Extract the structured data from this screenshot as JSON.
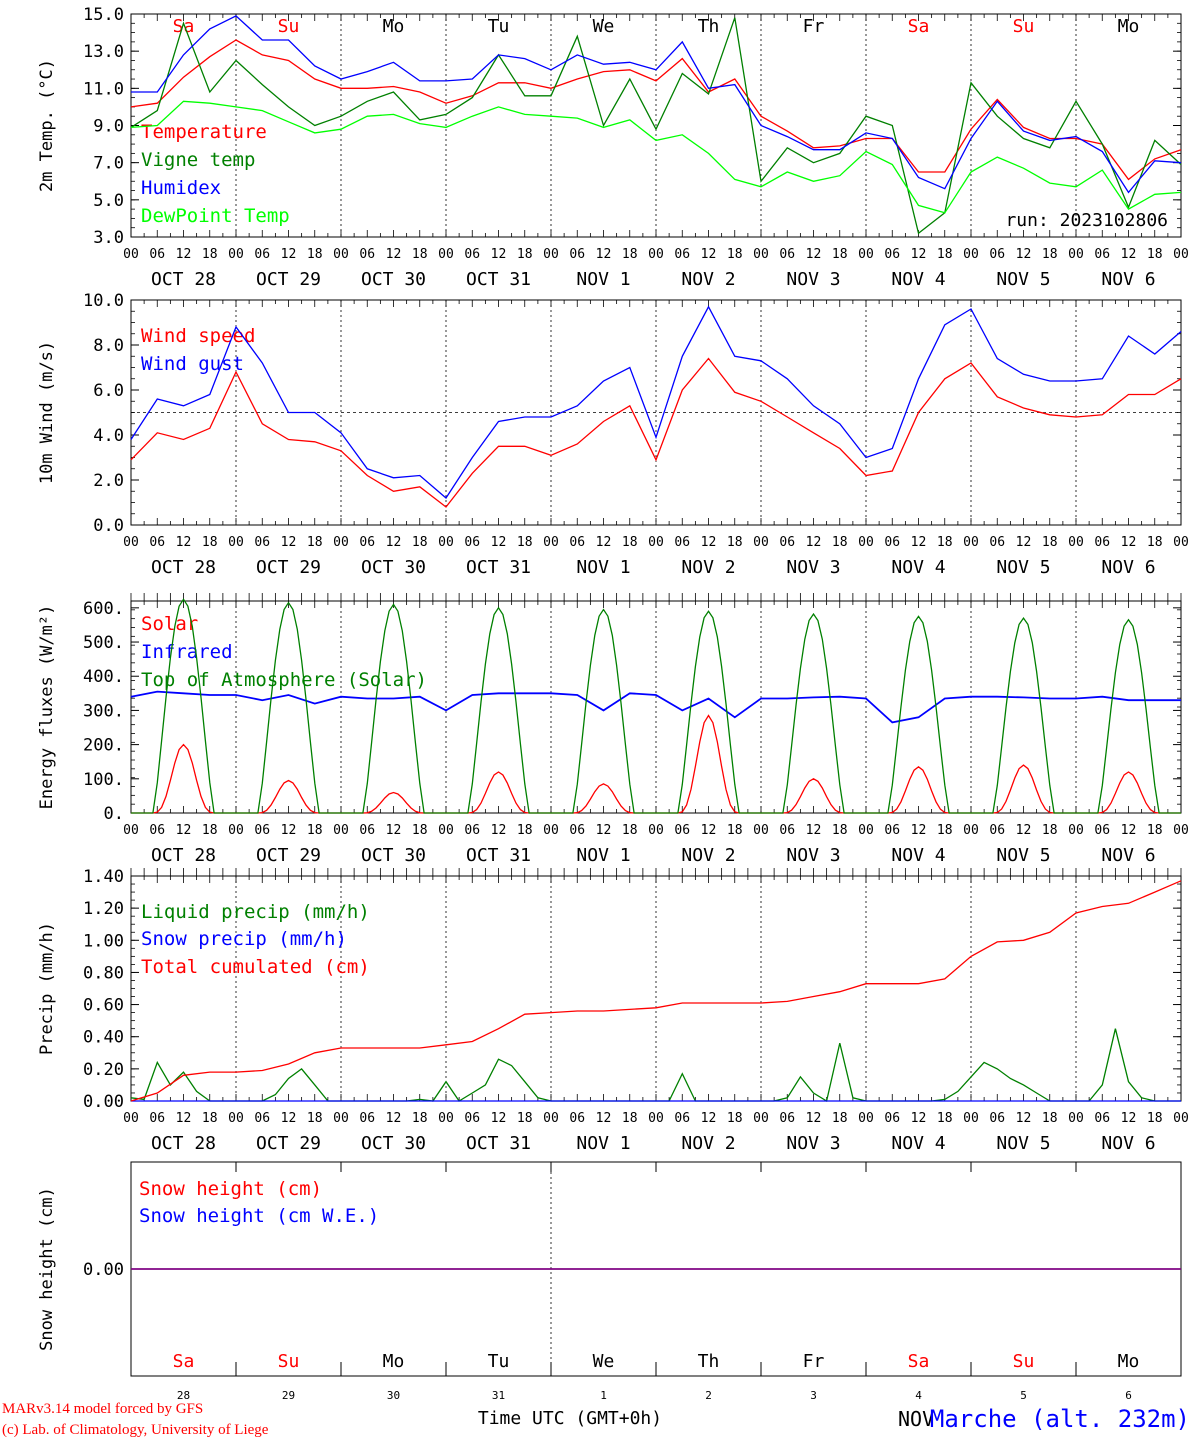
{
  "footer": {
    "model": "MARv3.14 model forced by GFS",
    "lab": "(c) Lab. of Climatology, University of Liege",
    "xlabel": "Time UTC (GMT+0h)",
    "station": "Marche (alt. 232m)",
    "overlap": "NOV"
  },
  "days": {
    "names": [
      "Sa",
      "Su",
      "Mo",
      "Tu",
      "We",
      "Th",
      "Fr",
      "Sa",
      "Su",
      "Mo"
    ],
    "weekend": [
      true,
      true,
      false,
      false,
      false,
      false,
      false,
      true,
      true,
      false
    ],
    "dates": [
      "OCT 28",
      "OCT 29",
      "OCT 30",
      "OCT 31",
      "NOV  1",
      "NOV  2",
      "NOV  3",
      "NOV  4",
      "NOV  5",
      "NOV  6"
    ],
    "numbers": [
      "28",
      "29",
      "30",
      "31",
      "1",
      "2",
      "3",
      "4",
      "5",
      "6"
    ],
    "hour_ticks": [
      "00",
      "06",
      "12",
      "18"
    ],
    "end_tick": "00"
  },
  "colors": {
    "red": "#ff0000",
    "green": "#008000",
    "blue": "#0000ff",
    "lime": "#00ff00",
    "weekend": "#ff0000",
    "purple": "#800080"
  },
  "chart_data": [
    {
      "type": "line",
      "title": "",
      "ylabel": "2m Temp. (°C)",
      "ylim": [
        3.0,
        15.0
      ],
      "yticks": [
        "3.0",
        "5.0",
        "7.0",
        "9.0",
        "11.0",
        "13.0",
        "15.0"
      ],
      "run_label": "run: 2023102806",
      "x_unit": "hours since 2023-10-28 00 UTC",
      "series": [
        {
          "name": "Temperature",
          "color": "red",
          "x": [
            0,
            6,
            12,
            18,
            24,
            30,
            36,
            42,
            48,
            54,
            60,
            66,
            72,
            78,
            84,
            90,
            96,
            102,
            108,
            114,
            120,
            126,
            132,
            138,
            144,
            150,
            156,
            162,
            168,
            174,
            180,
            186,
            192,
            198,
            204,
            210,
            216,
            222,
            228,
            234,
            240
          ],
          "y": [
            10.0,
            10.2,
            11.6,
            12.7,
            13.6,
            12.8,
            12.5,
            11.5,
            11.0,
            11.0,
            11.1,
            10.8,
            10.2,
            10.6,
            11.3,
            11.3,
            11.0,
            11.5,
            11.9,
            12.0,
            11.4,
            12.6,
            10.8,
            11.5,
            9.5,
            8.7,
            7.8,
            7.9,
            8.3,
            8.3,
            6.5,
            6.5,
            8.8,
            10.4,
            8.9,
            8.3,
            8.3,
            8.0,
            6.1,
            7.2,
            7.7
          ]
        },
        {
          "name": "Vigne temp",
          "color": "green",
          "x": [
            0,
            6,
            12,
            18,
            24,
            30,
            36,
            42,
            48,
            54,
            60,
            66,
            72,
            78,
            84,
            90,
            96,
            102,
            108,
            114,
            120,
            126,
            132,
            138,
            144,
            150,
            156,
            162,
            168,
            174,
            180,
            186,
            192,
            198,
            204,
            210,
            216,
            222,
            228,
            234,
            240
          ],
          "y": [
            8.9,
            9.8,
            14.5,
            10.8,
            12.5,
            11.2,
            10.0,
            9.0,
            9.5,
            10.3,
            10.8,
            9.3,
            9.6,
            10.5,
            12.8,
            10.6,
            10.6,
            13.8,
            9.0,
            11.5,
            8.8,
            11.8,
            10.7,
            14.8,
            6.0,
            7.8,
            7.0,
            7.5,
            9.5,
            9.0,
            3.2,
            4.3,
            11.3,
            9.5,
            8.3,
            7.8,
            10.3,
            8.0,
            4.6,
            8.2,
            6.9
          ]
        },
        {
          "name": "Humidex",
          "color": "blue",
          "x": [
            0,
            6,
            12,
            18,
            24,
            30,
            36,
            42,
            48,
            54,
            60,
            66,
            72,
            78,
            84,
            90,
            96,
            102,
            108,
            114,
            120,
            126,
            132,
            138,
            144,
            150,
            156,
            162,
            168,
            174,
            180,
            186,
            192,
            198,
            204,
            210,
            216,
            222,
            228,
            234,
            240
          ],
          "y": [
            10.8,
            10.8,
            12.8,
            14.2,
            14.9,
            13.6,
            13.6,
            12.2,
            11.5,
            11.9,
            12.4,
            11.4,
            11.4,
            11.5,
            12.8,
            12.6,
            12.0,
            12.8,
            12.3,
            12.4,
            12.0,
            13.5,
            11.0,
            11.2,
            9.0,
            8.4,
            7.7,
            7.7,
            8.6,
            8.3,
            6.2,
            5.6,
            8.3,
            10.3,
            8.7,
            8.2,
            8.4,
            7.6,
            5.4,
            7.1,
            7.0
          ]
        },
        {
          "name": "DewPoint Temp",
          "color": "lime",
          "x": [
            0,
            6,
            12,
            18,
            24,
            30,
            36,
            42,
            48,
            54,
            60,
            66,
            72,
            78,
            84,
            90,
            96,
            102,
            108,
            114,
            120,
            126,
            132,
            138,
            144,
            150,
            156,
            162,
            168,
            174,
            180,
            186,
            192,
            198,
            204,
            210,
            216,
            222,
            228,
            234,
            240
          ],
          "y": [
            8.9,
            9.0,
            10.3,
            10.2,
            10.0,
            9.8,
            9.2,
            8.6,
            8.8,
            9.5,
            9.6,
            9.1,
            8.9,
            9.5,
            10.0,
            9.6,
            9.5,
            9.4,
            8.9,
            9.3,
            8.2,
            8.5,
            7.5,
            6.1,
            5.7,
            6.5,
            6.0,
            6.3,
            7.6,
            6.9,
            4.7,
            4.3,
            6.5,
            7.3,
            6.7,
            5.9,
            5.7,
            6.6,
            4.5,
            5.3,
            5.4
          ]
        }
      ]
    },
    {
      "type": "line",
      "title": "",
      "ylabel": "10m Wind (m/s)",
      "ylim": [
        0.0,
        10.0
      ],
      "yticks": [
        "0.0",
        "2.0",
        "4.0",
        "6.0",
        "8.0",
        "10.0"
      ],
      "ref_line": 5.0,
      "x_unit": "hours since 2023-10-28 00 UTC",
      "series": [
        {
          "name": "Wind speed",
          "color": "red",
          "x": [
            0,
            6,
            12,
            18,
            24,
            30,
            36,
            42,
            48,
            54,
            60,
            66,
            72,
            78,
            84,
            90,
            96,
            102,
            108,
            114,
            120,
            126,
            132,
            138,
            144,
            150,
            156,
            162,
            168,
            174,
            180,
            186,
            192,
            198,
            204,
            210,
            216,
            222,
            228,
            234,
            240
          ],
          "y": [
            2.9,
            4.1,
            3.8,
            4.3,
            6.8,
            4.5,
            3.8,
            3.7,
            3.3,
            2.2,
            1.5,
            1.7,
            0.8,
            2.3,
            3.5,
            3.5,
            3.1,
            3.6,
            4.6,
            5.3,
            2.9,
            6.0,
            7.4,
            5.9,
            5.5,
            4.8,
            4.1,
            3.4,
            2.2,
            2.4,
            5.0,
            6.5,
            7.2,
            5.7,
            5.2,
            4.9,
            4.8,
            4.9,
            5.8,
            5.8,
            6.5
          ]
        },
        {
          "name": "Wind gust",
          "color": "blue",
          "x": [
            0,
            6,
            12,
            18,
            24,
            30,
            36,
            42,
            48,
            54,
            60,
            66,
            72,
            78,
            84,
            90,
            96,
            102,
            108,
            114,
            120,
            126,
            132,
            138,
            144,
            150,
            156,
            162,
            168,
            174,
            180,
            186,
            192,
            198,
            204,
            210,
            216,
            222,
            228,
            234,
            240
          ],
          "y": [
            3.8,
            5.6,
            5.3,
            5.8,
            8.8,
            7.2,
            5.0,
            5.0,
            4.1,
            2.5,
            2.1,
            2.2,
            1.2,
            3.0,
            4.6,
            4.8,
            4.8,
            5.3,
            6.4,
            7.0,
            3.9,
            7.5,
            9.7,
            7.5,
            7.3,
            6.5,
            5.3,
            4.5,
            3.0,
            3.4,
            6.5,
            8.9,
            9.6,
            7.4,
            6.7,
            6.4,
            6.4,
            6.5,
            8.4,
            7.6,
            8.6
          ]
        }
      ]
    },
    {
      "type": "line",
      "title": "",
      "ylabel": "Energy fluxes (W/m²)",
      "ylim": [
        0,
        620
      ],
      "yticks": [
        "0.",
        "100.",
        "200.",
        "300.",
        "400.",
        "500.",
        "600."
      ],
      "x_unit": "hours since 2023-10-28 00 UTC",
      "series": [
        {
          "name": "Solar",
          "color": "red",
          "peaks": [
            200,
            95,
            60,
            120,
            85,
            285,
            100,
            135,
            140,
            120
          ]
        },
        {
          "name": "Infrared",
          "color": "blue",
          "x": [
            0,
            6,
            12,
            18,
            24,
            30,
            36,
            42,
            48,
            54,
            60,
            66,
            72,
            78,
            84,
            90,
            96,
            102,
            108,
            114,
            120,
            126,
            132,
            138,
            144,
            150,
            156,
            162,
            168,
            174,
            180,
            186,
            192,
            198,
            204,
            210,
            216,
            222,
            228,
            234,
            240
          ],
          "y": [
            340,
            355,
            350,
            345,
            345,
            330,
            345,
            320,
            340,
            335,
            335,
            340,
            300,
            345,
            350,
            350,
            350,
            345,
            300,
            350,
            345,
            300,
            335,
            280,
            335,
            335,
            338,
            340,
            335,
            265,
            280,
            335,
            340,
            340,
            338,
            335,
            335,
            340,
            330,
            330,
            330
          ]
        },
        {
          "name": "Top of Atmosphere (Solar)",
          "color": "green",
          "peaks": [
            625,
            615,
            610,
            600,
            595,
            590,
            582,
            575,
            570,
            565
          ]
        }
      ]
    },
    {
      "type": "line",
      "title": "",
      "ylabel": "Precip (mm/h)",
      "ylim": [
        0.0,
        1.4
      ],
      "yticks": [
        "0.00",
        "0.20",
        "0.40",
        "0.60",
        "0.80",
        "1.00",
        "1.20",
        "1.40"
      ],
      "x_unit": "hours since 2023-10-28 00 UTC",
      "series": [
        {
          "name": "Liquid precip (mm/h)",
          "color": "green",
          "x": [
            0,
            3,
            6,
            9,
            12,
            15,
            18,
            21,
            24,
            27,
            30,
            33,
            36,
            39,
            42,
            45,
            48,
            51,
            54,
            57,
            60,
            63,
            66,
            69,
            72,
            75,
            78,
            81,
            84,
            87,
            90,
            93,
            96,
            99,
            102,
            105,
            108,
            111,
            114,
            117,
            120,
            123,
            126,
            129,
            132,
            135,
            138,
            141,
            144,
            147,
            150,
            153,
            156,
            159,
            162,
            165,
            168,
            171,
            174,
            177,
            180,
            183,
            186,
            189,
            192,
            195,
            198,
            201,
            204,
            207,
            210,
            213,
            216,
            219,
            222,
            225,
            228,
            231,
            234,
            237,
            240
          ],
          "y": [
            0.02,
            0.01,
            0.24,
            0.1,
            0.18,
            0.06,
            0.0,
            0.0,
            0.0,
            0.0,
            0.0,
            0.04,
            0.14,
            0.2,
            0.1,
            0.0,
            0.0,
            0.0,
            0.0,
            0.0,
            0.0,
            0.0,
            0.01,
            0.0,
            0.12,
            0.0,
            0.05,
            0.1,
            0.26,
            0.22,
            0.12,
            0.02,
            0.0,
            0.0,
            0.0,
            0.0,
            0.0,
            0.0,
            0.0,
            0.0,
            0.0,
            0.0,
            0.17,
            0.0,
            0.0,
            0.0,
            0.0,
            0.0,
            0.0,
            0.0,
            0.02,
            0.15,
            0.05,
            0.0,
            0.36,
            0.02,
            0.0,
            0.0,
            0.0,
            0.0,
            0.0,
            0.0,
            0.01,
            0.06,
            0.15,
            0.24,
            0.2,
            0.14,
            0.1,
            0.05,
            0.0,
            0.0,
            0.0,
            0.0,
            0.1,
            0.45,
            0.12,
            0.02,
            0.0,
            0.0,
            0.0
          ]
        },
        {
          "name": "Snow precip (mm/h)",
          "color": "blue",
          "x": [
            0,
            240
          ],
          "y": [
            0.0,
            0.0
          ]
        },
        {
          "name": "Total cumulated (cm)",
          "color": "red",
          "x": [
            0,
            6,
            12,
            18,
            24,
            30,
            36,
            42,
            48,
            54,
            60,
            66,
            72,
            78,
            84,
            90,
            96,
            102,
            108,
            114,
            120,
            126,
            132,
            138,
            144,
            150,
            156,
            162,
            168,
            174,
            180,
            186,
            192,
            198,
            204,
            210,
            216,
            222,
            228,
            234,
            240
          ],
          "y": [
            0.0,
            0.05,
            0.16,
            0.18,
            0.18,
            0.19,
            0.23,
            0.3,
            0.33,
            0.33,
            0.33,
            0.33,
            0.35,
            0.37,
            0.45,
            0.54,
            0.55,
            0.56,
            0.56,
            0.57,
            0.58,
            0.61,
            0.61,
            0.61,
            0.61,
            0.62,
            0.65,
            0.68,
            0.73,
            0.73,
            0.73,
            0.76,
            0.9,
            0.99,
            1.0,
            1.05,
            1.17,
            1.21,
            1.23,
            1.3,
            1.37
          ]
        }
      ]
    },
    {
      "type": "line",
      "title": "",
      "ylabel": "Snow height (cm)",
      "ylim": [
        -0.01,
        0.01
      ],
      "yticks": [
        "0.00"
      ],
      "x_unit": "hours since 2023-10-28 00 UTC",
      "series": [
        {
          "name": "Snow height (cm)",
          "color": "red",
          "x": [
            0,
            240
          ],
          "y": [
            0.0,
            0.0
          ]
        },
        {
          "name": "Snow height (cm W.E.)",
          "color": "blue",
          "x": [
            0,
            240
          ],
          "y": [
            0.0,
            0.0
          ]
        }
      ]
    }
  ]
}
